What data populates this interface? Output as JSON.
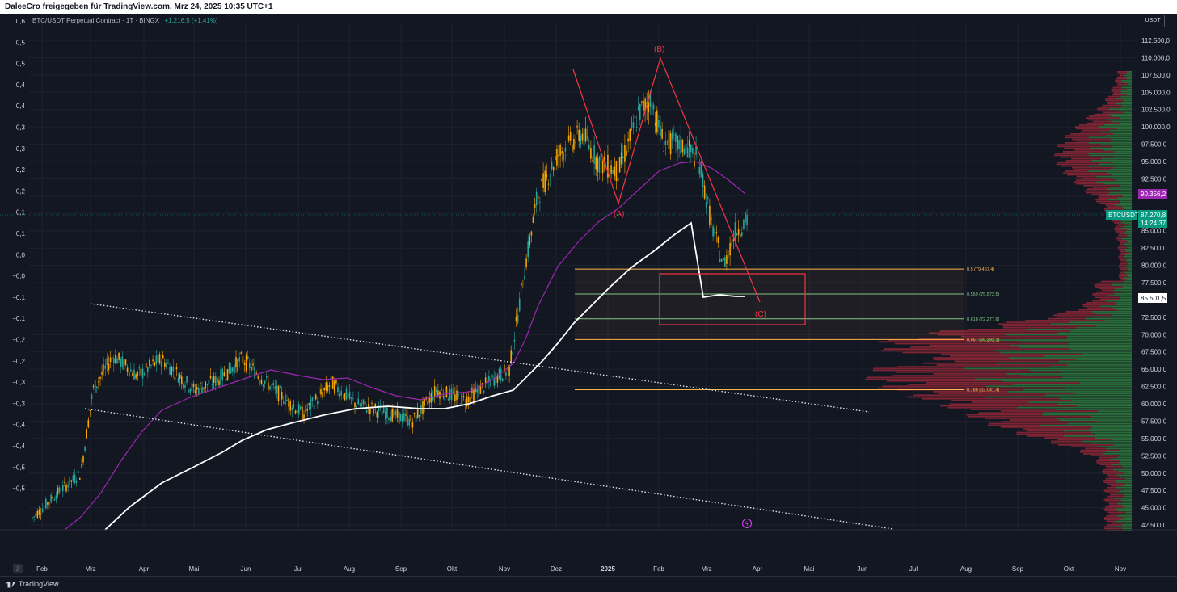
{
  "header": {
    "attribution": "DaleeCro freigegeben für TradingView.com, Mrz 24, 2025 10:35 UTC+1"
  },
  "legend": {
    "symbol": "BTC/USDT Perpetual Contract · 1T · BINGX",
    "change": "+1.216,5 (+1,41%)"
  },
  "currency_button": "USDT",
  "left_axis_labels": [
    "0,6",
    "0,5",
    "0,5",
    "0,4",
    "0,4",
    "0,3",
    "0,3",
    "0,2",
    "0,2",
    "0,1",
    "0,1",
    "0,0",
    "−0,0",
    "−0,1",
    "−0,1",
    "−0,2",
    "−0,2",
    "−0,3",
    "−0,3",
    "−0,4",
    "−0,4",
    "−0,5",
    "−0,5"
  ],
  "right_axis_labels": [
    "112.500,0",
    "110.000,0",
    "107.500,0",
    "105.000,0",
    "102.500,0",
    "100.000,0",
    "97.500,0",
    "95.000,0",
    "92.500,0",
    "90.000,0",
    "87.500,0",
    "85.000,0",
    "82.500,0",
    "80.000,0",
    "77.500,0",
    "75.000,0",
    "72.500,0",
    "70.000,0",
    "67.500,0",
    "65.000,0",
    "62.500,0",
    "60.000,0",
    "57.500,0",
    "55.000,0",
    "52.500,0",
    "50.000,0",
    "47.500,0",
    "45.000,0",
    "42.500,0"
  ],
  "price_tags": {
    "ma_value": "90.356,2",
    "symbol_tag": "BTCUSDT.P",
    "last_price": "87.270,8",
    "countdown": "14:24:37",
    "ma200_value": "85.501,5"
  },
  "time_axis": {
    "zoom_label": "Z",
    "labels": [
      "Feb",
      "Mrz",
      "Apr",
      "Mai",
      "Jun",
      "Jul",
      "Aug",
      "Sep",
      "Okt",
      "Nov",
      "Dez",
      "2025",
      "Feb",
      "Mrz",
      "Apr",
      "Mai",
      "Jun",
      "Jul",
      "Aug",
      "Sep",
      "Okt",
      "Nov"
    ]
  },
  "fib_levels": [
    {
      "label": "0,5 (79.467,4)",
      "color": "#ffb74d"
    },
    {
      "label": "0,559 (75.872,5)",
      "color": "#81c784"
    },
    {
      "label": "0,618 (72.277,6)",
      "color": "#81c784"
    },
    {
      "label": "0,667 (69.292,1)",
      "color": "#ffb74d"
    },
    {
      "label": "0,786 (62.041,4)",
      "color": "#ffb74d"
    }
  ],
  "wave_labels": [
    "(A)",
    "(B)",
    "(C)"
  ],
  "colors": {
    "background": "#131722",
    "up": "#26a69a",
    "down": "#f7a600",
    "ma_fast": "#9c27b0",
    "ma_slow": "#ffffff",
    "wave": "#f23645",
    "fib_gold": "#ffb74d",
    "fib_green": "#81c784"
  },
  "chart_data": {
    "type": "candlestick",
    "symbol": "BTC/USDT Perpetual Contract",
    "y_range": [
      41500,
      113500
    ],
    "fib_retracement": [
      {
        "level": 0.5,
        "price": 79467.4
      },
      {
        "level": 0.559,
        "price": 75872.5
      },
      {
        "level": 0.618,
        "price": 72277.6
      },
      {
        "level": 0.667,
        "price": 69292.1
      },
      {
        "level": 0.786,
        "price": 62041.4
      }
    ],
    "last_price": 87270.8,
    "ma_values": [
      90356.2,
      85501.5
    ]
  },
  "footer": {
    "brand": "TradingView"
  }
}
